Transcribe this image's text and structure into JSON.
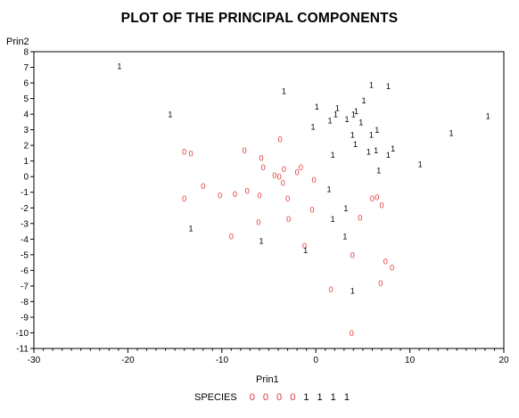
{
  "chart_data": {
    "type": "scatter",
    "title": "PLOT OF THE PRINCIPAL COMPONENTS",
    "xlabel": "Prin1",
    "ylabel": "Prin2",
    "xlim": [
      -30,
      20
    ],
    "ylim": [
      -11,
      8
    ],
    "xticks": [
      -30,
      -20,
      -10,
      0,
      10,
      20
    ],
    "yticks": [
      -11,
      -10,
      -9,
      -8,
      -7,
      -6,
      -5,
      -4,
      -3,
      -2,
      -1,
      0,
      1,
      2,
      3,
      4,
      5,
      6,
      7,
      8
    ],
    "legend": {
      "title": "SPECIES",
      "entries": [
        {
          "symbol": "0 0 0 0",
          "color": "#e03030"
        },
        {
          "symbol": "1 1 1 1",
          "color": "#000000"
        }
      ]
    },
    "series": [
      {
        "symbol": "0",
        "color": "#e03030",
        "points": [
          [
            -14.0,
            1.6
          ],
          [
            -13.3,
            1.5
          ],
          [
            -7.6,
            1.7
          ],
          [
            -5.8,
            1.2
          ],
          [
            -5.6,
            0.6
          ],
          [
            -3.8,
            2.4
          ],
          [
            -3.4,
            0.5
          ],
          [
            -1.6,
            0.6
          ],
          [
            -2.0,
            0.3
          ],
          [
            -4.4,
            0.1
          ],
          [
            -3.9,
            0.0
          ],
          [
            -3.5,
            -0.4
          ],
          [
            -0.2,
            -0.2
          ],
          [
            -12.0,
            -0.6
          ],
          [
            -14.0,
            -1.4
          ],
          [
            -10.2,
            -1.2
          ],
          [
            -8.6,
            -1.1
          ],
          [
            -7.3,
            -0.9
          ],
          [
            -6.0,
            -1.2
          ],
          [
            -3.0,
            -1.4
          ],
          [
            -6.1,
            -2.9
          ],
          [
            -2.9,
            -2.7
          ],
          [
            -0.4,
            -2.1
          ],
          [
            4.7,
            -2.6
          ],
          [
            6.0,
            -1.4
          ],
          [
            6.5,
            -1.3
          ],
          [
            7.0,
            -1.8
          ],
          [
            -9.0,
            -3.8
          ],
          [
            -1.2,
            -4.4
          ],
          [
            3.9,
            -5.0
          ],
          [
            7.4,
            -5.4
          ],
          [
            8.1,
            -5.8
          ],
          [
            1.6,
            -7.2
          ],
          [
            6.9,
            -6.8
          ],
          [
            3.8,
            -10.0
          ]
        ]
      },
      {
        "symbol": "1",
        "color": "#000000",
        "points": [
          [
            -20.9,
            7.1
          ],
          [
            -15.5,
            4.0
          ],
          [
            -3.4,
            5.5
          ],
          [
            5.9,
            5.9
          ],
          [
            7.7,
            5.8
          ],
          [
            0.1,
            4.5
          ],
          [
            2.3,
            4.4
          ],
          [
            5.1,
            4.9
          ],
          [
            2.1,
            4.0
          ],
          [
            4.0,
            4.0
          ],
          [
            4.3,
            4.2
          ],
          [
            1.5,
            3.6
          ],
          [
            3.3,
            3.7
          ],
          [
            4.8,
            3.5
          ],
          [
            -0.3,
            3.2
          ],
          [
            6.5,
            3.0
          ],
          [
            5.9,
            2.7
          ],
          [
            3.9,
            2.7
          ],
          [
            4.2,
            2.1
          ],
          [
            1.8,
            1.4
          ],
          [
            5.6,
            1.6
          ],
          [
            6.4,
            1.7
          ],
          [
            7.7,
            1.4
          ],
          [
            8.2,
            1.8
          ],
          [
            14.4,
            2.8
          ],
          [
            18.3,
            3.9
          ],
          [
            11.1,
            0.8
          ],
          [
            6.7,
            0.4
          ],
          [
            1.4,
            -0.8
          ],
          [
            3.2,
            -2.0
          ],
          [
            1.8,
            -2.7
          ],
          [
            -13.3,
            -3.3
          ],
          [
            -5.8,
            -4.1
          ],
          [
            3.1,
            -3.8
          ],
          [
            -1.1,
            -4.7
          ],
          [
            3.9,
            -7.3
          ]
        ]
      }
    ]
  }
}
